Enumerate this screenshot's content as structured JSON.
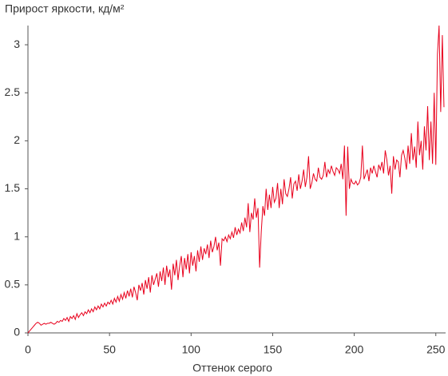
{
  "chart_data": {
    "type": "line",
    "title": "Прирост яркости, кд/м²",
    "x_label": "Оттенок серого",
    "xlim": [
      0,
      256
    ],
    "ylim": [
      0,
      3.2
    ],
    "xticks": [
      0,
      50,
      100,
      150,
      200,
      250
    ],
    "yticks": [
      0,
      0.5,
      1,
      1.5,
      2,
      2.5,
      3
    ],
    "grid": false,
    "x": [
      0,
      1,
      2,
      3,
      4,
      5,
      6,
      7,
      8,
      9,
      10,
      11,
      12,
      13,
      14,
      15,
      16,
      17,
      18,
      19,
      20,
      21,
      22,
      23,
      24,
      25,
      26,
      27,
      28,
      29,
      30,
      31,
      32,
      33,
      34,
      35,
      36,
      37,
      38,
      39,
      40,
      41,
      42,
      43,
      44,
      45,
      46,
      47,
      48,
      49,
      50,
      51,
      52,
      53,
      54,
      55,
      56,
      57,
      58,
      59,
      60,
      61,
      62,
      63,
      64,
      65,
      66,
      67,
      68,
      69,
      70,
      71,
      72,
      73,
      74,
      75,
      76,
      77,
      78,
      79,
      80,
      81,
      82,
      83,
      84,
      85,
      86,
      87,
      88,
      89,
      90,
      91,
      92,
      93,
      94,
      95,
      96,
      97,
      98,
      99,
      100,
      101,
      102,
      103,
      104,
      105,
      106,
      107,
      108,
      109,
      110,
      111,
      112,
      113,
      114,
      115,
      116,
      117,
      118,
      119,
      120,
      121,
      122,
      123,
      124,
      125,
      126,
      127,
      128,
      129,
      130,
      131,
      132,
      133,
      134,
      135,
      136,
      137,
      138,
      139,
      140,
      141,
      142,
      143,
      144,
      145,
      146,
      147,
      148,
      149,
      150,
      151,
      152,
      153,
      154,
      155,
      156,
      157,
      158,
      159,
      160,
      161,
      162,
      163,
      164,
      165,
      166,
      167,
      168,
      169,
      170,
      171,
      172,
      173,
      174,
      175,
      176,
      177,
      178,
      179,
      180,
      181,
      182,
      183,
      184,
      185,
      186,
      187,
      188,
      189,
      190,
      191,
      192,
      193,
      194,
      195,
      196,
      197,
      198,
      199,
      200,
      201,
      202,
      203,
      204,
      205,
      206,
      207,
      208,
      209,
      210,
      211,
      212,
      213,
      214,
      215,
      216,
      217,
      218,
      219,
      220,
      221,
      222,
      223,
      224,
      225,
      226,
      227,
      228,
      229,
      230,
      231,
      232,
      233,
      234,
      235,
      236,
      237,
      238,
      239,
      240,
      241,
      242,
      243,
      244,
      245,
      246,
      247,
      248,
      249,
      250,
      251,
      252,
      253,
      254,
      255
    ],
    "series": [
      {
        "color": "#e8001c",
        "values": [
          0,
          0.02,
          0.04,
          0.06,
          0.08,
          0.1,
          0.11,
          0.1,
          0.08,
          0.09,
          0.1,
          0.09,
          0.1,
          0.1,
          0.11,
          0.1,
          0.09,
          0.1,
          0.12,
          0.11,
          0.13,
          0.12,
          0.15,
          0.13,
          0.16,
          0.12,
          0.17,
          0.15,
          0.18,
          0.14,
          0.2,
          0.16,
          0.19,
          0.21,
          0.18,
          0.22,
          0.2,
          0.24,
          0.21,
          0.25,
          0.22,
          0.27,
          0.24,
          0.28,
          0.25,
          0.3,
          0.27,
          0.31,
          0.28,
          0.32,
          0.3,
          0.34,
          0.3,
          0.36,
          0.32,
          0.38,
          0.33,
          0.4,
          0.35,
          0.42,
          0.36,
          0.44,
          0.38,
          0.46,
          0.37,
          0.48,
          0.42,
          0.34,
          0.5,
          0.44,
          0.52,
          0.4,
          0.55,
          0.46,
          0.58,
          0.42,
          0.6,
          0.5,
          0.56,
          0.62,
          0.48,
          0.64,
          0.54,
          0.68,
          0.5,
          0.7,
          0.58,
          0.66,
          0.45,
          0.72,
          0.6,
          0.76,
          0.55,
          0.7,
          0.8,
          0.58,
          0.78,
          0.66,
          0.82,
          0.62,
          0.84,
          0.7,
          0.8,
          0.64,
          0.86,
          0.74,
          0.9,
          0.76,
          0.88,
          0.82,
          0.92,
          0.78,
          0.96,
          0.84,
          0.9,
          1.0,
          0.86,
          0.94,
          0.7,
          0.98,
          0.96,
          1.0,
          0.95,
          1.02,
          0.98,
          1.05,
          0.99,
          1.1,
          1.02,
          1.08,
          1.04,
          1.15,
          1.06,
          1.2,
          1.1,
          1.35,
          1.05,
          1.25,
          1.18,
          1.4,
          1.2,
          1.3,
          0.68,
          1.05,
          1.32,
          1.22,
          1.5,
          1.28,
          1.44,
          1.3,
          1.52,
          1.36,
          1.4,
          1.56,
          1.3,
          1.5,
          1.34,
          1.6,
          1.45,
          1.42,
          1.5,
          1.62,
          1.4,
          1.55,
          1.58,
          1.48,
          1.65,
          1.5,
          1.58,
          1.7,
          1.52,
          1.62,
          1.84,
          1.5,
          1.56,
          1.66,
          1.6,
          1.58,
          1.72,
          1.62,
          1.6,
          1.64,
          1.78,
          1.62,
          1.7,
          1.66,
          1.74,
          1.68,
          1.64,
          1.72,
          1.7,
          1.66,
          1.76,
          1.6,
          1.95,
          1.22,
          1.94,
          1.5,
          1.6,
          1.56,
          1.55,
          1.58,
          1.54,
          1.56,
          1.62,
          1.95,
          1.6,
          1.65,
          1.7,
          1.58,
          1.72,
          1.66,
          1.74,
          1.68,
          1.62,
          1.75,
          1.7,
          1.78,
          1.66,
          1.9,
          1.8,
          1.64,
          1.74,
          1.45,
          1.84,
          1.7,
          1.8,
          1.78,
          1.62,
          1.85,
          1.9,
          1.82,
          1.7,
          1.95,
          1.76,
          2.08,
          1.8,
          1.94,
          1.72,
          2.2,
          1.85,
          2.0,
          1.7,
          2.15,
          1.9,
          2.36,
          1.8,
          2.2,
          1.76,
          2.5,
          1.75,
          2.9,
          3.2,
          2.3,
          3.1,
          2.35
        ]
      }
    ]
  }
}
